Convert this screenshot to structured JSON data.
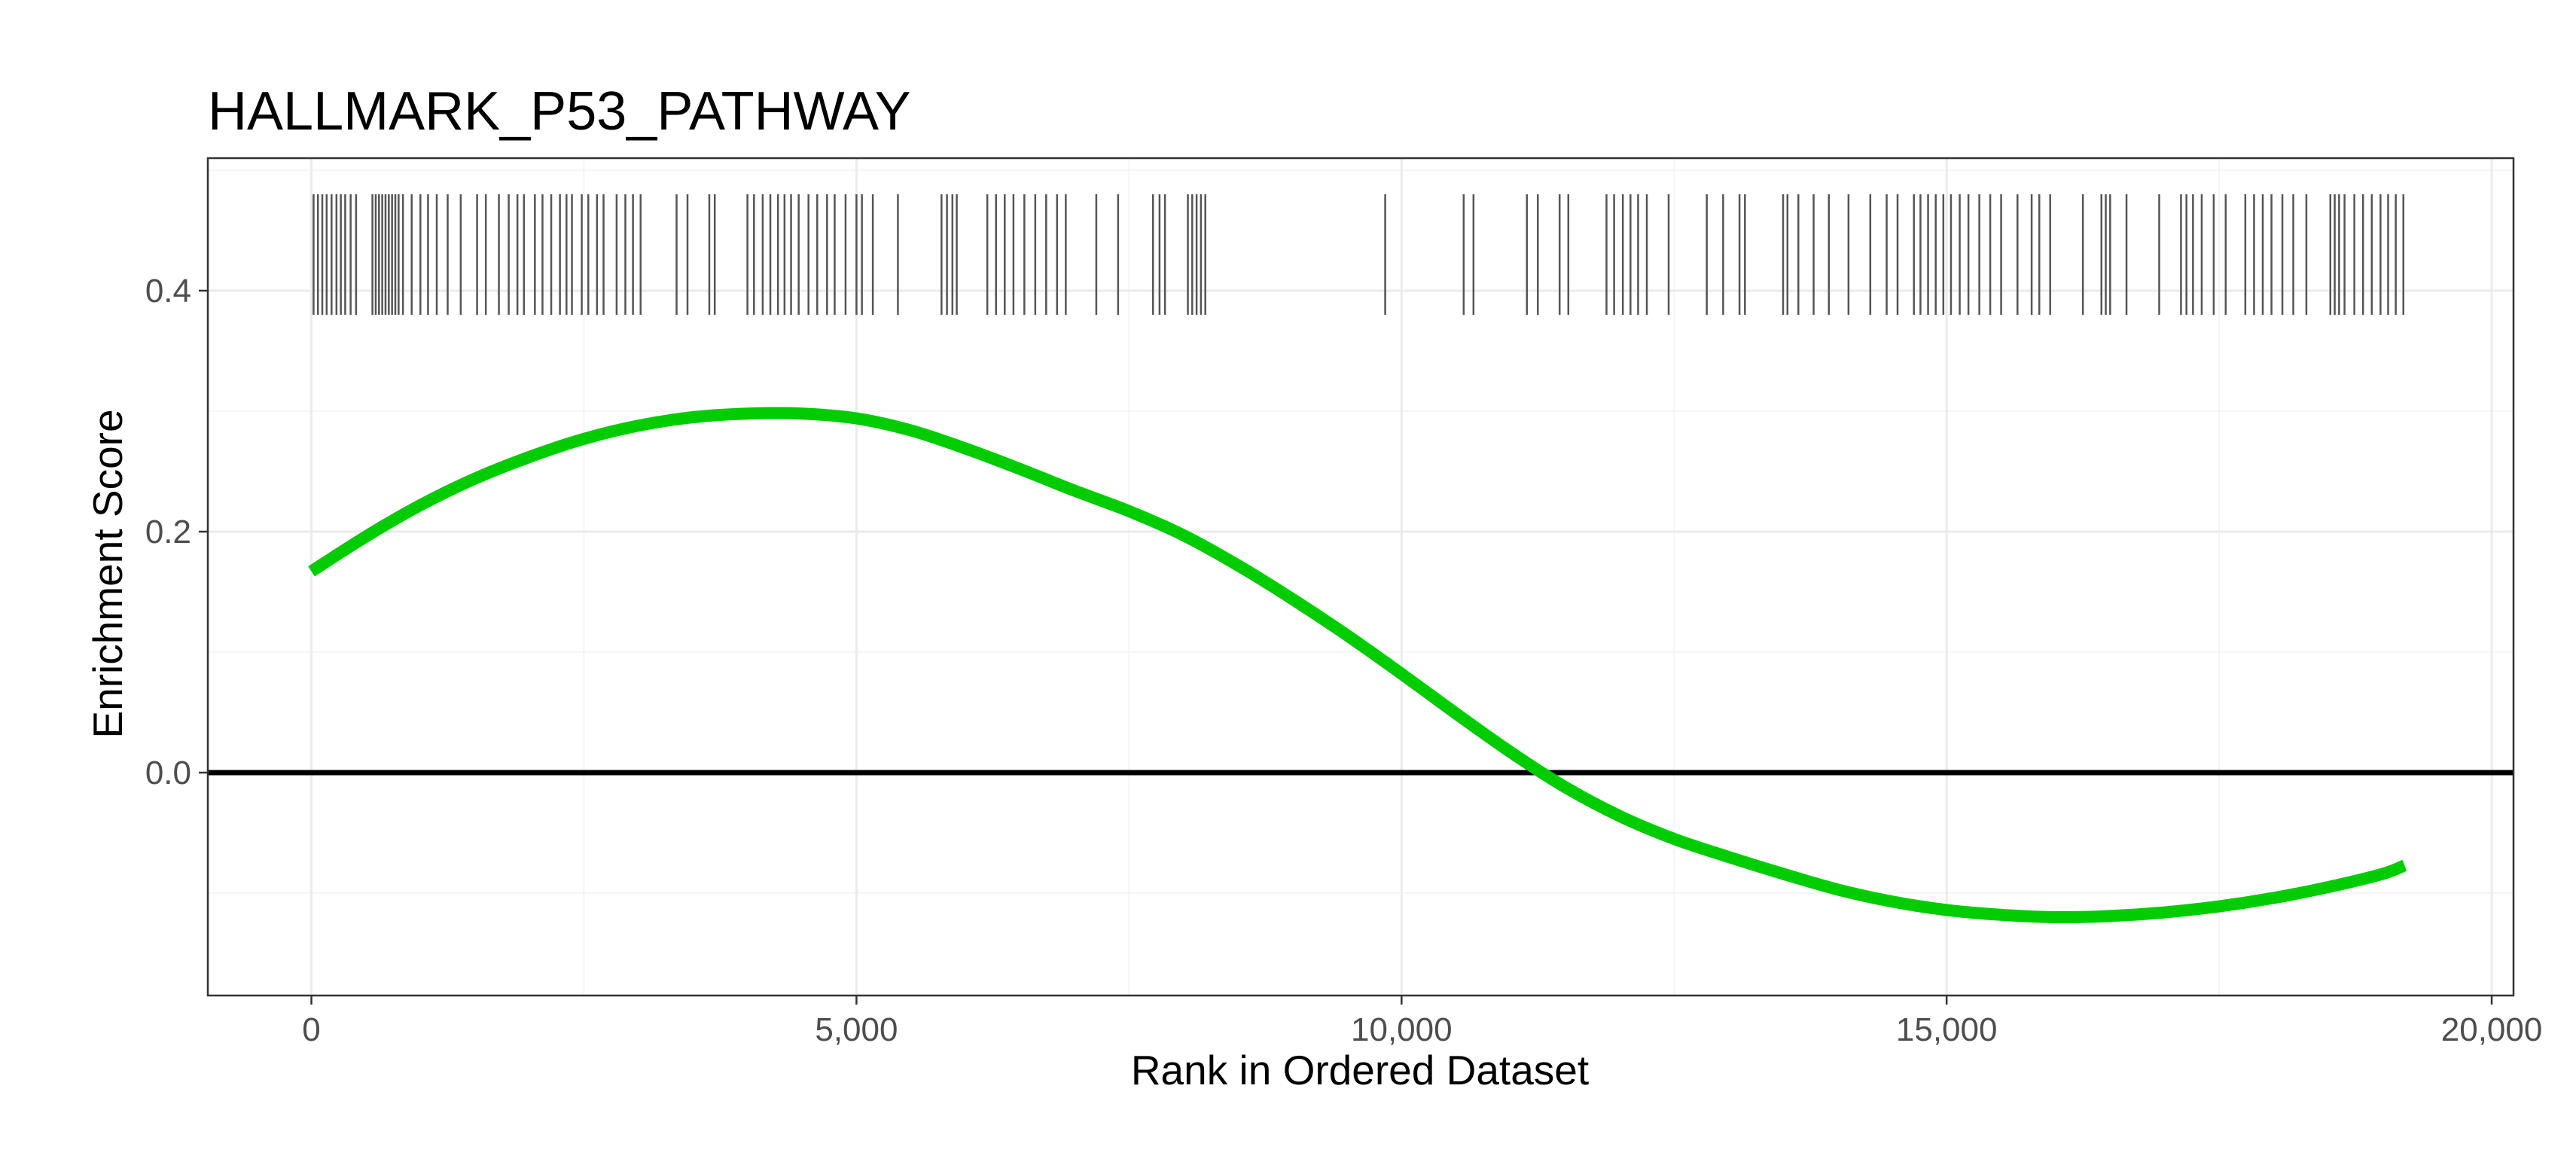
{
  "chart_data": {
    "type": "line",
    "title": "HALLMARK_P53_PATHWAY",
    "xlabel": "Rank in Ordered Dataset",
    "ylabel": "Enrichment Score",
    "xlim": [
      -950,
      20200
    ],
    "ylim": [
      -0.185,
      0.51
    ],
    "x_ticks": [
      0,
      5000,
      10000,
      15000,
      20000
    ],
    "x_tick_labels": [
      "0",
      "5,000",
      "10,000",
      "15,000",
      "20,000"
    ],
    "y_ticks": [
      0.0,
      0.2,
      0.4
    ],
    "y_tick_labels": [
      "0.0",
      "0.2",
      "0.4"
    ],
    "grid": true,
    "zero_line": 0,
    "series": [
      {
        "color": "#00cc00",
        "x": [
          0,
          500,
          1000,
          1500,
          2000,
          2500,
          3000,
          3500,
          4000,
          4500,
          5000,
          5500,
          6000,
          6500,
          7000,
          7500,
          8000,
          8500,
          9000,
          9500,
          10000,
          10500,
          11000,
          11500,
          12000,
          12500,
          13000,
          13500,
          14000,
          14500,
          15000,
          15500,
          16000,
          16500,
          17000,
          17500,
          18000,
          18500,
          19000,
          19200
        ],
        "y": [
          0.167,
          0.196,
          0.222,
          0.244,
          0.262,
          0.277,
          0.288,
          0.295,
          0.298,
          0.298,
          0.294,
          0.284,
          0.269,
          0.252,
          0.234,
          0.217,
          0.197,
          0.172,
          0.144,
          0.114,
          0.082,
          0.049,
          0.017,
          -0.012,
          -0.036,
          -0.055,
          -0.07,
          -0.084,
          -0.097,
          -0.107,
          -0.114,
          -0.118,
          -0.12,
          -0.119,
          -0.116,
          -0.111,
          -0.104,
          -0.095,
          -0.084,
          -0.077
        ]
      }
    ],
    "hits": {
      "color": "#555555",
      "y_range": [
        0.38,
        0.48
      ],
      "positions": [
        20,
        60,
        100,
        140,
        185,
        230,
        270,
        310,
        360,
        410,
        560,
        590,
        620,
        650,
        680,
        710,
        740,
        770,
        800,
        840,
        920,
        1000,
        1070,
        1150,
        1250,
        1370,
        1520,
        1600,
        1720,
        1810,
        1890,
        1950,
        2050,
        2120,
        2200,
        2280,
        2340,
        2390,
        2480,
        2540,
        2620,
        2680,
        2800,
        2880,
        2950,
        3020,
        3350,
        3450,
        3650,
        3700,
        4000,
        4060,
        4140,
        4210,
        4280,
        4340,
        4400,
        4470,
        4560,
        4640,
        4730,
        4800,
        4900,
        5000,
        5050,
        5150,
        5380,
        5780,
        5830,
        5880,
        5920,
        6200,
        6280,
        6360,
        6440,
        6540,
        6640,
        6740,
        6840,
        6920,
        7200,
        7400,
        7720,
        7780,
        7830,
        8040,
        8080,
        8120,
        8160,
        8200,
        9850,
        10570,
        10660,
        11150,
        11250,
        11450,
        11530,
        11880,
        11950,
        12030,
        12100,
        12170,
        12250,
        12450,
        12800,
        12950,
        13100,
        13150,
        13500,
        13540,
        13640,
        13780,
        13920,
        14100,
        14300,
        14450,
        14550,
        14700,
        14760,
        14830,
        14900,
        14970,
        15040,
        15120,
        15200,
        15300,
        15400,
        15500,
        15650,
        15780,
        15850,
        15950,
        16250,
        16420,
        16460,
        16500,
        16650,
        16950,
        17150,
        17200,
        17260,
        17340,
        17450,
        17560,
        17740,
        17820,
        17900,
        17980,
        18080,
        18180,
        18300,
        18520,
        18560,
        18600,
        18650,
        18740,
        18820,
        18900,
        18980,
        19050,
        19120,
        19190
      ]
    }
  }
}
